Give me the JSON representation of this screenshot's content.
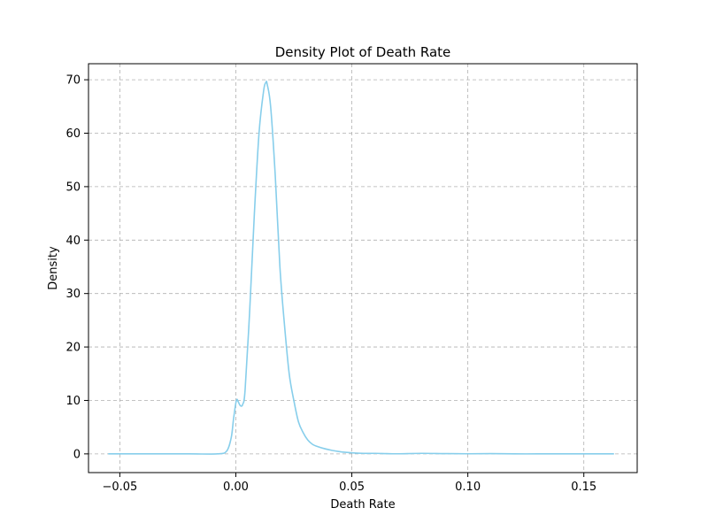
{
  "chart_data": {
    "type": "line",
    "title": "Density Plot of Death Rate",
    "xlabel": "Death Rate",
    "ylabel": "Density",
    "xlim": [
      -0.0635,
      0.173
    ],
    "ylim": [
      -3.5,
      73.0
    ],
    "x_ticks": [
      -0.05,
      0.0,
      0.05,
      0.1,
      0.15
    ],
    "x_tick_labels": [
      "−0.05",
      "0.00",
      "0.05",
      "0.10",
      "0.15"
    ],
    "y_ticks": [
      0,
      10,
      20,
      30,
      40,
      50,
      60,
      70
    ],
    "y_tick_labels": [
      "0",
      "10",
      "20",
      "30",
      "40",
      "50",
      "60",
      "70"
    ],
    "grid": true,
    "series": [
      {
        "color": "#87ceeb",
        "x": [
          -0.055,
          -0.04,
          -0.02,
          -0.008,
          -0.004,
          -0.002,
          -0.001,
          0.0,
          0.0005,
          0.001,
          0.002,
          0.003,
          0.004,
          0.006,
          0.008,
          0.01,
          0.012,
          0.013,
          0.0135,
          0.015,
          0.017,
          0.019,
          0.021,
          0.023,
          0.025,
          0.027,
          0.029,
          0.031,
          0.033,
          0.035,
          0.038,
          0.041,
          0.045,
          0.05,
          0.055,
          0.06,
          0.065,
          0.07,
          0.08,
          0.09,
          0.1,
          0.11,
          0.12,
          0.13,
          0.14,
          0.15,
          0.163
        ],
        "y": [
          0.0,
          0.0,
          0.0,
          0.0,
          0.5,
          3.0,
          6.5,
          9.5,
          10.2,
          9.8,
          9.0,
          9.3,
          12.0,
          27.0,
          45.0,
          60.0,
          68.0,
          69.5,
          69.2,
          65.0,
          52.0,
          35.0,
          24.0,
          15.0,
          10.0,
          6.0,
          4.0,
          2.6,
          1.8,
          1.4,
          1.0,
          0.7,
          0.4,
          0.2,
          0.1,
          0.1,
          0.05,
          0.02,
          0.1,
          0.05,
          0.02,
          0.05,
          0.0,
          0.0,
          0.0,
          0.0,
          0.0
        ]
      }
    ]
  }
}
